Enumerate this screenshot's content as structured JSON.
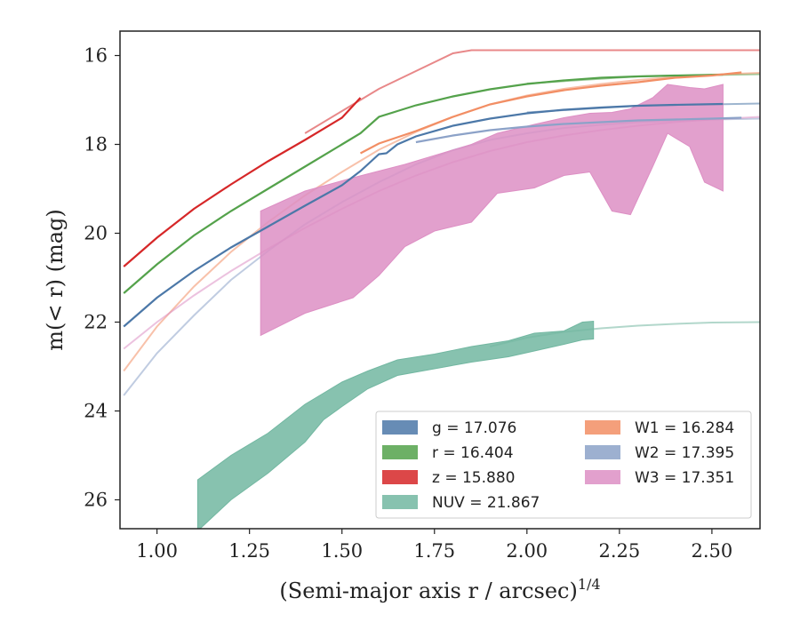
{
  "chart_data": {
    "type": "line",
    "title": "",
    "xlabel": "(Semi-major axis r / arcsec)",
    "xlabel_exponent": "1/4",
    "ylabel": "m(< r) (mag)",
    "xlim": [
      0.9,
      2.63
    ],
    "ylim": [
      26.65,
      15.45
    ],
    "y_inverted": true,
    "grid": false,
    "legend_position": "lower-right",
    "x_ticks": [
      "1.00",
      "1.25",
      "1.50",
      "1.75",
      "2.00",
      "2.25",
      "2.50"
    ],
    "y_ticks": [
      "16",
      "18",
      "20",
      "22",
      "24",
      "26"
    ],
    "series": [
      {
        "name": "g = 17.076",
        "color": "#4c78a8",
        "line": [
          [
            0.91,
            22.1
          ],
          [
            1.0,
            21.45
          ],
          [
            1.1,
            20.85
          ],
          [
            1.2,
            20.32
          ],
          [
            1.3,
            19.85
          ],
          [
            1.4,
            19.38
          ],
          [
            1.5,
            18.92
          ],
          [
            1.55,
            18.6
          ],
          [
            1.6,
            18.22
          ],
          [
            1.62,
            18.2
          ],
          [
            1.65,
            18.0
          ],
          [
            1.7,
            17.82
          ],
          [
            1.8,
            17.58
          ],
          [
            1.9,
            17.42
          ],
          [
            2.0,
            17.3
          ],
          [
            2.1,
            17.22
          ],
          [
            2.2,
            17.17
          ],
          [
            2.3,
            17.13
          ],
          [
            2.4,
            17.11
          ],
          [
            2.53,
            17.09
          ]
        ],
        "model": [
          [
            2.0,
            17.28
          ],
          [
            2.3,
            17.13
          ],
          [
            2.63,
            17.08
          ]
        ]
      },
      {
        "name": "r = 16.404",
        "color": "#54a24b",
        "line": [
          [
            0.91,
            21.35
          ],
          [
            1.0,
            20.7
          ],
          [
            1.1,
            20.05
          ],
          [
            1.2,
            19.5
          ],
          [
            1.3,
            19.0
          ],
          [
            1.4,
            18.5
          ],
          [
            1.5,
            18.0
          ],
          [
            1.55,
            17.75
          ],
          [
            1.6,
            17.38
          ],
          [
            1.65,
            17.25
          ],
          [
            1.7,
            17.12
          ],
          [
            1.8,
            16.92
          ],
          [
            1.9,
            16.76
          ],
          [
            2.0,
            16.64
          ],
          [
            2.1,
            16.56
          ],
          [
            2.2,
            16.5
          ],
          [
            2.3,
            16.47
          ],
          [
            2.4,
            16.45
          ],
          [
            2.53,
            16.43
          ]
        ],
        "model": [
          [
            2.0,
            16.63
          ],
          [
            2.3,
            16.47
          ],
          [
            2.63,
            16.42
          ]
        ]
      },
      {
        "name": "z = 15.880",
        "color": "#d62728",
        "line": [
          [
            0.91,
            20.75
          ],
          [
            1.0,
            20.1
          ],
          [
            1.1,
            19.45
          ],
          [
            1.2,
            18.9
          ],
          [
            1.3,
            18.38
          ],
          [
            1.4,
            17.9
          ],
          [
            1.5,
            17.4
          ],
          [
            1.55,
            16.95
          ]
        ],
        "model": [
          [
            1.4,
            17.75
          ],
          [
            1.5,
            17.25
          ],
          [
            1.6,
            16.75
          ],
          [
            1.7,
            16.35
          ],
          [
            1.8,
            15.95
          ],
          [
            1.85,
            15.88
          ],
          [
            2.0,
            15.88
          ],
          [
            2.3,
            15.88
          ],
          [
            2.63,
            15.88
          ]
        ]
      },
      {
        "name": "NUV = 21.867",
        "color": "#72b7a1",
        "band": [
          [
            1.11,
            25.55,
            26.7
          ],
          [
            1.2,
            25.0,
            26.0
          ],
          [
            1.3,
            24.5,
            25.4
          ],
          [
            1.4,
            23.85,
            24.7
          ],
          [
            1.45,
            23.6,
            24.2
          ],
          [
            1.5,
            23.35,
            23.9
          ],
          [
            1.57,
            23.1,
            23.5
          ],
          [
            1.65,
            22.85,
            23.2
          ],
          [
            1.75,
            22.72,
            23.05
          ],
          [
            1.85,
            22.55,
            22.9
          ],
          [
            1.95,
            22.42,
            22.78
          ],
          [
            2.02,
            22.25,
            22.65
          ],
          [
            2.1,
            22.2,
            22.5
          ],
          [
            2.15,
            22.0,
            22.4
          ],
          [
            2.18,
            21.98,
            22.38
          ]
        ],
        "model": [
          [
            1.9,
            22.55
          ],
          [
            2.0,
            22.35
          ],
          [
            2.1,
            22.22
          ],
          [
            2.2,
            22.14
          ],
          [
            2.3,
            22.08
          ],
          [
            2.4,
            22.04
          ],
          [
            2.5,
            22.01
          ],
          [
            2.63,
            22.0
          ]
        ]
      },
      {
        "name": "W1 = 16.284",
        "color": "#f28e64",
        "line": [
          [
            1.55,
            18.2
          ],
          [
            1.6,
            17.98
          ],
          [
            1.7,
            17.7
          ],
          [
            1.8,
            17.38
          ],
          [
            1.9,
            17.1
          ],
          [
            2.0,
            16.92
          ],
          [
            2.1,
            16.78
          ],
          [
            2.2,
            16.68
          ],
          [
            2.3,
            16.6
          ],
          [
            2.4,
            16.5
          ],
          [
            2.5,
            16.45
          ],
          [
            2.58,
            16.38
          ]
        ],
        "model": [
          [
            0.91,
            23.1
          ],
          [
            1.0,
            22.1
          ],
          [
            1.1,
            21.2
          ],
          [
            1.2,
            20.42
          ],
          [
            1.3,
            19.75
          ],
          [
            1.4,
            19.15
          ],
          [
            1.5,
            18.62
          ],
          [
            1.6,
            18.12
          ],
          [
            1.7,
            17.72
          ],
          [
            1.8,
            17.38
          ],
          [
            1.9,
            17.1
          ],
          [
            2.0,
            16.9
          ],
          [
            2.1,
            16.75
          ],
          [
            2.2,
            16.64
          ],
          [
            2.3,
            16.55
          ],
          [
            2.4,
            16.48
          ],
          [
            2.5,
            16.43
          ],
          [
            2.63,
            16.39
          ]
        ]
      },
      {
        "name": "W2 = 17.395",
        "color": "#8ca2c8",
        "line": [
          [
            1.7,
            17.95
          ],
          [
            1.8,
            17.8
          ],
          [
            1.9,
            17.68
          ],
          [
            2.0,
            17.6
          ],
          [
            2.1,
            17.54
          ],
          [
            2.2,
            17.5
          ],
          [
            2.3,
            17.46
          ],
          [
            2.4,
            17.44
          ],
          [
            2.5,
            17.42
          ],
          [
            2.58,
            17.4
          ]
        ],
        "model": [
          [
            0.91,
            23.65
          ],
          [
            1.0,
            22.7
          ],
          [
            1.1,
            21.85
          ],
          [
            1.2,
            21.05
          ],
          [
            1.3,
            20.4
          ],
          [
            1.4,
            19.8
          ],
          [
            1.5,
            19.3
          ],
          [
            1.6,
            18.85
          ],
          [
            1.7,
            18.45
          ],
          [
            1.8,
            18.13
          ],
          [
            1.9,
            17.9
          ],
          [
            2.0,
            17.75
          ],
          [
            2.1,
            17.63
          ],
          [
            2.2,
            17.56
          ],
          [
            2.3,
            17.5
          ],
          [
            2.4,
            17.47
          ],
          [
            2.5,
            17.44
          ],
          [
            2.63,
            17.42
          ]
        ]
      },
      {
        "name": "W3 = 17.351",
        "color": "#dd8fc4",
        "band": [
          [
            1.28,
            19.5,
            22.3
          ],
          [
            1.4,
            19.05,
            21.8
          ],
          [
            1.53,
            18.75,
            21.45
          ],
          [
            1.6,
            18.6,
            20.95
          ],
          [
            1.67,
            18.45,
            20.3
          ],
          [
            1.75,
            18.25,
            19.95
          ],
          [
            1.85,
            18.0,
            19.75
          ],
          [
            1.92,
            17.75,
            19.1
          ],
          [
            2.02,
            17.55,
            18.98
          ],
          [
            2.1,
            17.4,
            18.7
          ],
          [
            2.17,
            17.3,
            18.62
          ],
          [
            2.23,
            17.28,
            19.5
          ],
          [
            2.28,
            17.2,
            19.58
          ],
          [
            2.34,
            16.95,
            18.5
          ],
          [
            2.38,
            16.65,
            17.75
          ],
          [
            2.44,
            16.72,
            18.05
          ],
          [
            2.48,
            16.75,
            18.85
          ],
          [
            2.53,
            16.65,
            19.05
          ]
        ],
        "model": [
          [
            0.91,
            22.6
          ],
          [
            1.0,
            22.0
          ],
          [
            1.1,
            21.4
          ],
          [
            1.2,
            20.85
          ],
          [
            1.3,
            20.35
          ],
          [
            1.4,
            19.88
          ],
          [
            1.5,
            19.45
          ],
          [
            1.6,
            19.05
          ],
          [
            1.7,
            18.7
          ],
          [
            1.8,
            18.4
          ],
          [
            1.9,
            18.15
          ],
          [
            2.0,
            17.95
          ],
          [
            2.1,
            17.8
          ],
          [
            2.2,
            17.68
          ],
          [
            2.3,
            17.58
          ],
          [
            2.4,
            17.5
          ],
          [
            2.5,
            17.44
          ],
          [
            2.63,
            17.38
          ]
        ]
      }
    ]
  }
}
